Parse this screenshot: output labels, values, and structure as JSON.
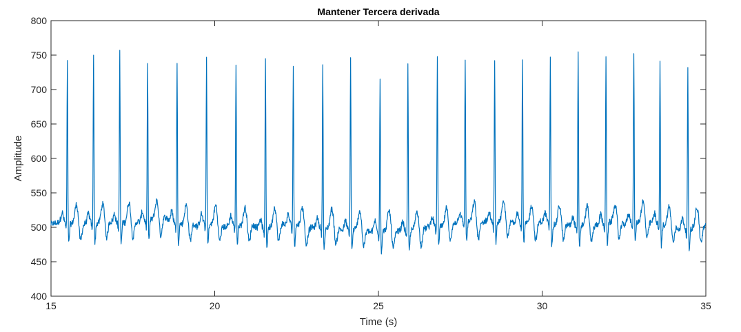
{
  "chart_data": {
    "type": "line",
    "title": "Mantener Tercera derivada",
    "xlabel": "Time (s)",
    "ylabel": "Amplitude",
    "xlim": [
      15,
      35
    ],
    "ylim": [
      400,
      800
    ],
    "x_ticks": [
      15,
      20,
      25,
      30,
      35
    ],
    "y_ticks": [
      400,
      450,
      500,
      550,
      600,
      650,
      700,
      750,
      800
    ],
    "grid": false,
    "line_color": "#0072BD",
    "signal": {
      "sample_rate_hz": 100,
      "baseline": 502,
      "r_peaks": [
        {
          "t": 15.5,
          "amp": 740
        },
        {
          "t": 16.3,
          "amp": 752
        },
        {
          "t": 17.1,
          "amp": 755
        },
        {
          "t": 17.95,
          "amp": 737
        },
        {
          "t": 18.85,
          "amp": 737
        },
        {
          "t": 19.75,
          "amp": 745
        },
        {
          "t": 20.65,
          "amp": 740
        },
        {
          "t": 21.55,
          "amp": 748
        },
        {
          "t": 22.4,
          "amp": 740
        },
        {
          "t": 23.3,
          "amp": 746
        },
        {
          "t": 24.15,
          "amp": 756
        },
        {
          "t": 25.05,
          "amp": 728
        },
        {
          "t": 25.9,
          "amp": 746
        },
        {
          "t": 26.8,
          "amp": 750
        },
        {
          "t": 27.65,
          "amp": 745
        },
        {
          "t": 28.55,
          "amp": 739
        },
        {
          "t": 29.4,
          "amp": 746
        },
        {
          "t": 30.25,
          "amp": 750
        },
        {
          "t": 31.1,
          "amp": 757
        },
        {
          "t": 31.95,
          "amp": 752
        },
        {
          "t": 32.8,
          "amp": 755
        },
        {
          "t": 33.6,
          "amp": 744
        },
        {
          "t": 34.45,
          "amp": 742
        }
      ]
    }
  }
}
